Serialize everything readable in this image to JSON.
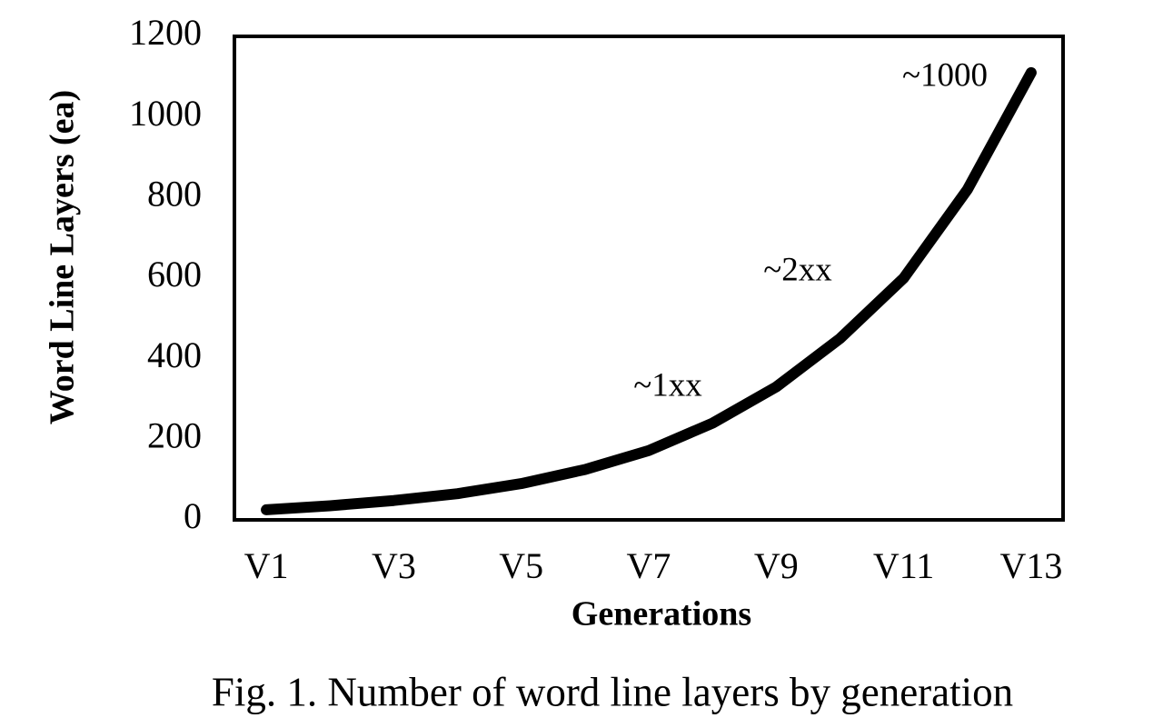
{
  "chart_data": {
    "type": "line",
    "y_label": "Word Line Layers (ea)",
    "x_label": "Generations",
    "caption": "Fig. 1. Number of word line layers by generation",
    "categories": [
      "V1",
      null,
      "V3",
      null,
      "V5",
      null,
      "V7",
      null,
      "V9",
      null,
      "V11",
      null,
      "V13"
    ],
    "values": [
      25,
      35,
      48,
      65,
      90,
      125,
      172,
      240,
      330,
      450,
      600,
      820,
      1110
    ],
    "color": "#000000",
    "ylim": [
      0,
      1200
    ],
    "yticks": [
      0,
      200,
      400,
      600,
      800,
      1000,
      1200
    ],
    "grid": false,
    "annotations": [
      "~1xx",
      "~2xx",
      "~1000"
    ]
  }
}
